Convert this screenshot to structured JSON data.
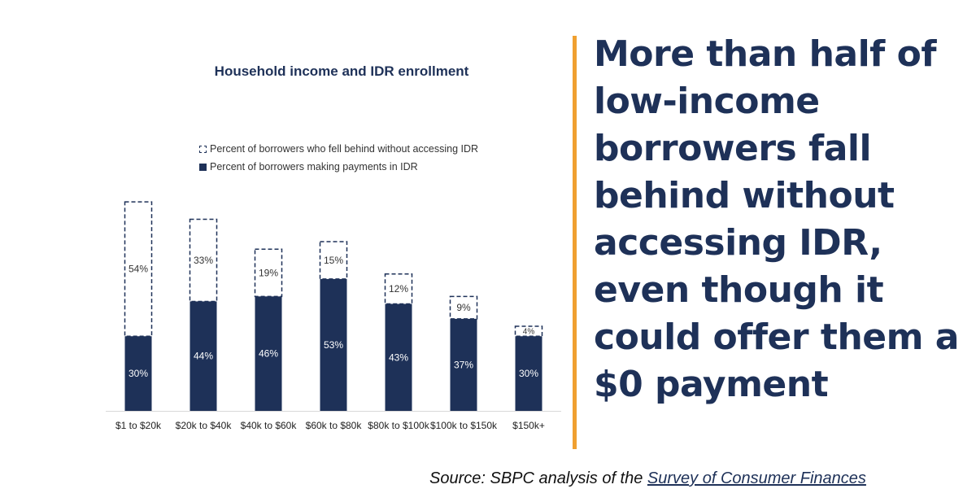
{
  "headline": "More than half of low-income borrowers fall behind without accessing IDR, even though it could offer them a $0 payment",
  "source": {
    "prefix": "Source: SBPC analysis of the ",
    "link_text": "Survey of Consumer Finances"
  },
  "colors": {
    "navy": "#1e3158",
    "accent": "#f0a030"
  },
  "chart_data": {
    "type": "bar",
    "stacked": true,
    "title": "Household income and IDR enrollment",
    "categories": [
      "$1 to $20k",
      "$20k to $40k",
      "$40k to $60k",
      "$60k to $80k",
      "$80k to $100k",
      "$100k to $150k",
      "$150k+"
    ],
    "series": [
      {
        "name": "Percent of borrowers making payments in IDR",
        "values": [
          30,
          44,
          46,
          53,
          43,
          37,
          30
        ],
        "labels": [
          "30%",
          "44%",
          "46%",
          "53%",
          "43%",
          "37%",
          "30%"
        ],
        "style": "solid"
      },
      {
        "name": "Percent of borrowers who fell behind without accessing IDR",
        "values": [
          54,
          33,
          19,
          15,
          12,
          9,
          4
        ],
        "labels": [
          "54%",
          "33%",
          "19%",
          "15%",
          "12%",
          "9%",
          "4%"
        ],
        "style": "dashed"
      }
    ],
    "ylim": [
      0,
      86
    ],
    "grid": false,
    "legend": "top-left"
  }
}
